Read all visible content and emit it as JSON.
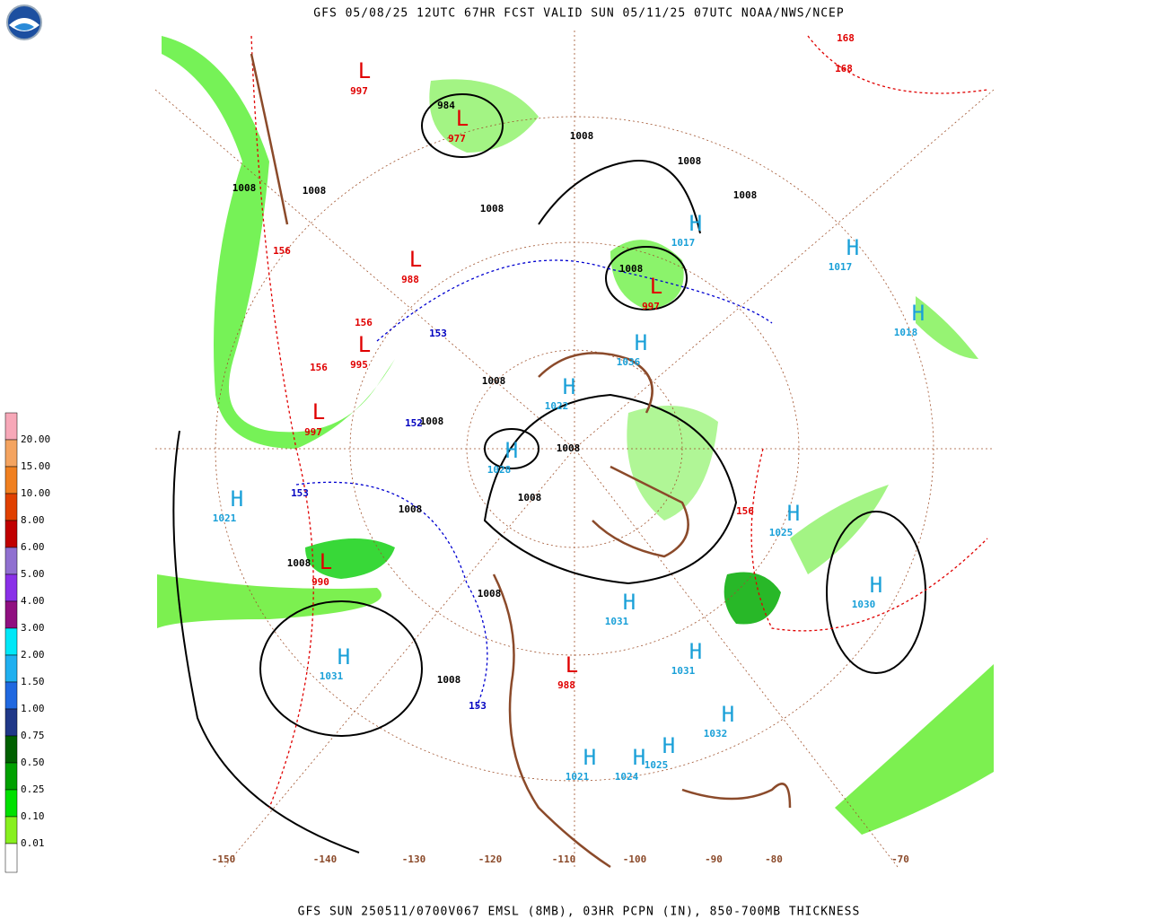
{
  "header": {
    "title": "GFS 05/08/25 12UTC 67HR FCST VALID SUN 05/11/25 07UTC NOAA/NWS/NCEP"
  },
  "footer": {
    "caption": "GFS SUN 250511/0700V067 EMSL (8MB), 03HR PCPN (IN), 850-700MB THICKNESS"
  },
  "legend": {
    "items": [
      {
        "label": "20.00",
        "color": "#f7a8b8"
      },
      {
        "label": "15.00",
        "color": "#f4a460"
      },
      {
        "label": "10.00",
        "color": "#f08020"
      },
      {
        "label": "8.00",
        "color": "#e04000"
      },
      {
        "label": "6.00",
        "color": "#c00000"
      },
      {
        "label": "5.00",
        "color": "#9070d0"
      },
      {
        "label": "4.00",
        "color": "#8a30e8"
      },
      {
        "label": "3.00",
        "color": "#901080"
      },
      {
        "label": "2.00",
        "color": "#00e8f8"
      },
      {
        "label": "1.50",
        "color": "#20b0f0"
      },
      {
        "label": "1.00",
        "color": "#2068e0"
      },
      {
        "label": "0.75",
        "color": "#203888"
      },
      {
        "label": "0.50",
        "color": "#006000"
      },
      {
        "label": "0.25",
        "color": "#00a000"
      },
      {
        "label": "0.10",
        "color": "#00e000"
      },
      {
        "label": "0.01",
        "color": "#88f020"
      }
    ],
    "base_color": "#ffffff"
  },
  "map": {
    "highs": [
      {
        "symbol": "H",
        "pressure": "1021"
      },
      {
        "symbol": "H",
        "pressure": "1031"
      },
      {
        "symbol": "H",
        "pressure": "1028"
      },
      {
        "symbol": "H",
        "pressure": "1022"
      },
      {
        "symbol": "H",
        "pressure": "1017"
      },
      {
        "symbol": "H",
        "pressure": "1017"
      },
      {
        "symbol": "H",
        "pressure": "1030"
      },
      {
        "symbol": "H",
        "pressure": "1025"
      },
      {
        "symbol": "H",
        "pressure": "1031"
      },
      {
        "symbol": "H",
        "pressure": "1031"
      },
      {
        "symbol": "H",
        "pressure": "1021"
      },
      {
        "symbol": "H",
        "pressure": "1025"
      },
      {
        "symbol": "H",
        "pressure": "1024"
      },
      {
        "symbol": "H",
        "pressure": "1032"
      },
      {
        "symbol": "H",
        "pressure": "1036"
      },
      {
        "symbol": "H",
        "pressure": "1018"
      }
    ],
    "lows": [
      {
        "symbol": "L",
        "pressure": "977"
      },
      {
        "symbol": "L",
        "pressure": "988"
      },
      {
        "symbol": "L",
        "pressure": "995"
      },
      {
        "symbol": "L",
        "pressure": "997"
      },
      {
        "symbol": "L",
        "pressure": "990"
      },
      {
        "symbol": "L",
        "pressure": "988"
      },
      {
        "symbol": "L",
        "pressure": "997"
      },
      {
        "symbol": "L",
        "pressure": "997"
      }
    ],
    "isobar_labels": [
      "1008",
      "1008",
      "1008",
      "1008",
      "1008",
      "1008",
      "1008",
      "1008",
      "1008",
      "1008",
      "1008",
      "1008",
      "1008",
      "1008",
      "1008",
      "984"
    ],
    "thickness_labels": [
      "168",
      "168",
      "156",
      "156",
      "156",
      "153",
      "152",
      "153",
      "156",
      "153"
    ],
    "longitude_labels": [
      "-150",
      "-140",
      "-130",
      "-120",
      "-110",
      "-100",
      "-90",
      "-80",
      "-70"
    ]
  }
}
